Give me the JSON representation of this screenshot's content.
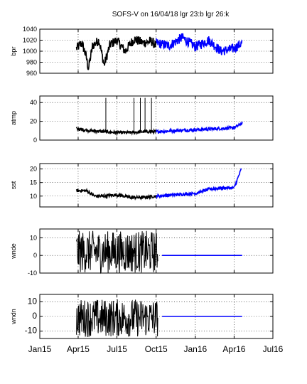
{
  "chart_data": {
    "type": "line",
    "title": "SOFS-V on 16/04/18 lgr 23:b lgr 26:k",
    "x_tick_labels": [
      "Jan15",
      "Apr15",
      "Jul15",
      "Oct15",
      "Jan16",
      "Apr16",
      "Jul16"
    ],
    "x_range": [
      "2015-01-01",
      "2016-07-01"
    ],
    "grid": true,
    "series_colors": {
      "logger_26_k": "#000000",
      "logger_23_b": "#0000ff"
    },
    "panels": [
      {
        "ylabel": "bpr",
        "ylim": [
          960,
          1040
        ],
        "yticks": [
          960,
          980,
          1000,
          1020,
          1040
        ],
        "series": [
          {
            "color": "#000000",
            "points": [
              [
                "2015-03-28",
                1005
              ],
              [
                "2015-04-10",
                1015
              ],
              [
                "2015-04-20",
                990
              ],
              [
                "2015-04-25",
                968
              ],
              [
                "2015-05-05",
                1010
              ],
              [
                "2015-05-20",
                1020
              ],
              [
                "2015-06-01",
                975
              ],
              [
                "2015-06-15",
                1012
              ],
              [
                "2015-07-01",
                1020
              ],
              [
                "2015-07-20",
                1000
              ],
              [
                "2015-08-10",
                1022
              ],
              [
                "2015-09-01",
                1015
              ],
              [
                "2015-09-20",
                1018
              ],
              [
                "2015-10-01",
                1010
              ]
            ]
          },
          {
            "color": "#0000ff",
            "points": [
              [
                "2015-10-01",
                1015
              ],
              [
                "2015-11-01",
                1010
              ],
              [
                "2015-12-01",
                1025
              ],
              [
                "2016-01-01",
                1008
              ],
              [
                "2016-02-01",
                1020
              ],
              [
                "2016-03-01",
                1000
              ],
              [
                "2016-04-01",
                1005
              ],
              [
                "2016-04-20",
                1015
              ]
            ]
          }
        ]
      },
      {
        "ylabel": "atmp",
        "ylim": [
          0,
          47
        ],
        "yticks": [
          0,
          20,
          40
        ],
        "series": [
          {
            "color": "#000000",
            "points": [
              [
                "2015-03-28",
                12
              ],
              [
                "2015-05-01",
                10
              ],
              [
                "2015-06-01",
                9
              ],
              [
                "2015-07-01",
                8
              ],
              [
                "2015-08-01",
                8
              ],
              [
                "2015-09-01",
                9
              ],
              [
                "2015-10-01",
                9
              ]
            ]
          },
          {
            "color": "#0000ff",
            "points": [
              [
                "2015-10-01",
                9
              ],
              [
                "2015-11-15",
                10
              ],
              [
                "2016-01-01",
                11
              ],
              [
                "2016-02-15",
                12
              ],
              [
                "2016-04-01",
                13
              ],
              [
                "2016-04-20",
                18
              ]
            ]
          }
        ],
        "spikes": [
          [
            "2015-06-05",
            45
          ],
          [
            "2015-08-10",
            45
          ],
          [
            "2015-08-25",
            45
          ],
          [
            "2015-09-05",
            45
          ],
          [
            "2015-09-20",
            45
          ]
        ]
      },
      {
        "ylabel": "sst",
        "ylim": [
          6,
          22
        ],
        "yticks": [
          10,
          15,
          20
        ],
        "series": [
          {
            "color": "#000000",
            "points": [
              [
                "2015-03-28",
                12
              ],
              [
                "2015-04-20",
                12
              ],
              [
                "2015-05-10",
                10
              ],
              [
                "2015-06-01",
                10
              ],
              [
                "2015-07-01",
                10.5
              ],
              [
                "2015-08-01",
                9.5
              ],
              [
                "2015-09-01",
                9.5
              ],
              [
                "2015-10-01",
                10
              ]
            ]
          },
          {
            "color": "#0000ff",
            "points": [
              [
                "2015-10-01",
                10
              ],
              [
                "2015-11-15",
                10.5
              ],
              [
                "2016-01-01",
                11
              ],
              [
                "2016-02-01",
                12.5
              ],
              [
                "2016-03-01",
                13
              ],
              [
                "2016-04-01",
                13
              ],
              [
                "2016-04-18",
                20
              ]
            ]
          }
        ]
      },
      {
        "ylabel": "wnde",
        "ylim": [
          -10,
          15
        ],
        "yticks": [
          -10,
          0,
          10
        ],
        "series": [
          {
            "color": "#000000",
            "points": [
              [
                "2015-03-28",
                8
              ],
              [
                "2015-10-05",
                0
              ]
            ],
            "band": [
              -10,
              14
            ]
          },
          {
            "color": "#0000ff",
            "points": [
              [
                "2015-10-15",
                0
              ],
              [
                "2016-04-20",
                0
              ]
            ]
          }
        ]
      },
      {
        "ylabel": "wndn",
        "ylim": [
          -15,
          15
        ],
        "yticks": [
          -10,
          0,
          10
        ],
        "series": [
          {
            "color": "#000000",
            "points": [
              [
                "2015-03-28",
                5
              ],
              [
                "2015-10-05",
                0
              ]
            ],
            "band": [
              -14,
              12
            ]
          },
          {
            "color": "#0000ff",
            "points": [
              [
                "2015-10-15",
                0
              ],
              [
                "2016-04-20",
                0
              ]
            ]
          }
        ]
      }
    ]
  }
}
